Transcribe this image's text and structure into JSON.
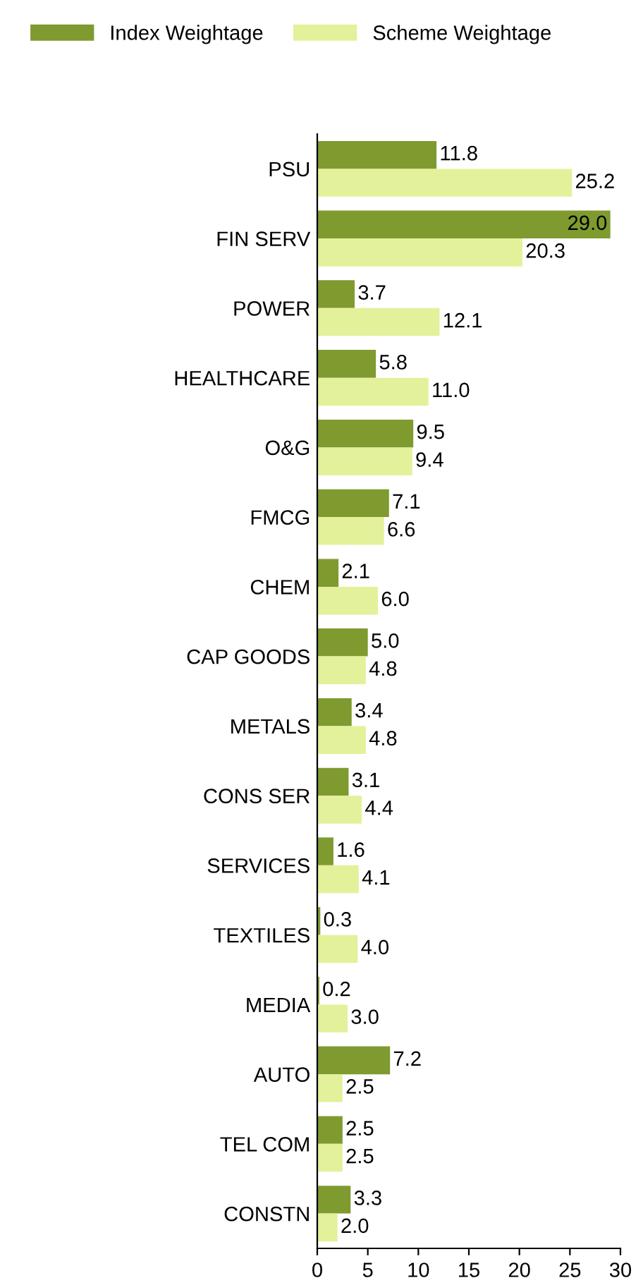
{
  "chart_data": {
    "type": "bar",
    "orientation": "horizontal",
    "categories": [
      "PSU",
      "FIN SERV",
      "POWER",
      "HEALTHCARE",
      "O&G",
      "FMCG",
      "CHEM",
      "CAP GOODS",
      "METALS",
      "CONS SER",
      "SERVICES",
      "TEXTILES",
      "MEDIA",
      "AUTO",
      "TEL COM",
      "CONSTN"
    ],
    "series": [
      {
        "name": "Index Weightage",
        "color": "#7f9a2f",
        "values": [
          11.8,
          29.0,
          3.7,
          5.8,
          9.5,
          7.1,
          2.1,
          5.0,
          3.4,
          3.1,
          1.6,
          0.3,
          0.2,
          7.2,
          2.5,
          3.3
        ],
        "value_labels": [
          "11.8",
          "29.0",
          "3.7",
          "5.8",
          "9.5",
          "7.1",
          "2.1",
          "5.0",
          "3.4",
          "3.1",
          "1.6",
          "0.3",
          "0.2",
          "7.2",
          "2.5",
          "3.3"
        ]
      },
      {
        "name": "Scheme Weightage",
        "color": "#e3f19a",
        "values": [
          25.2,
          20.3,
          12.1,
          11.0,
          9.4,
          6.6,
          6.0,
          4.8,
          4.8,
          4.4,
          4.1,
          4.0,
          3.0,
          2.5,
          2.5,
          2.0
        ],
        "value_labels": [
          "25.2",
          "20.3",
          "12.1",
          "11.0",
          "9.4",
          "6.6",
          "6.0",
          "4.8",
          "4.8",
          "4.4",
          "4.1",
          "4.0",
          "3.0",
          "2.5",
          "2.5",
          "2.0"
        ]
      }
    ],
    "xlim": [
      0,
      30
    ],
    "xticks": [
      0,
      5,
      10,
      15,
      20,
      25,
      30
    ],
    "legend": "top left",
    "grid": false
  }
}
